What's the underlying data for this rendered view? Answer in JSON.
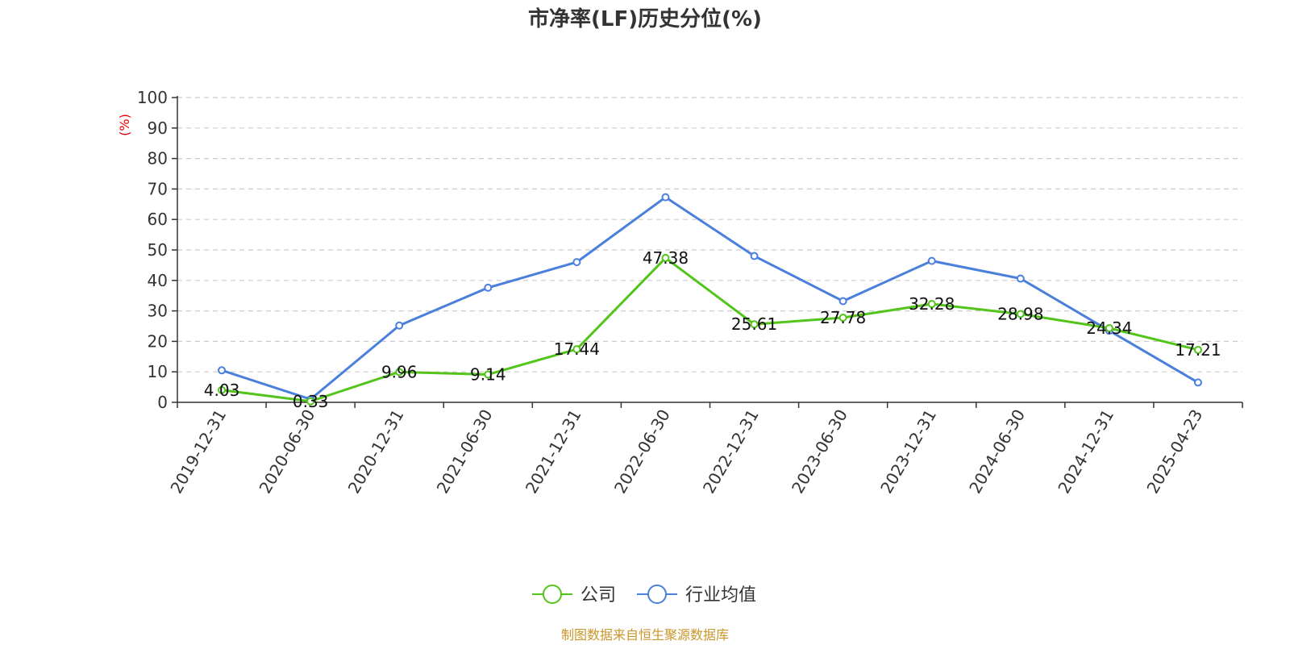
{
  "chart_data": {
    "type": "line",
    "title": "市净率(LF)历史分位(%)",
    "ylabel": "(%)",
    "ylim": [
      0,
      100
    ],
    "yticks": [
      0,
      10,
      20,
      30,
      40,
      50,
      60,
      70,
      80,
      90,
      100
    ],
    "grid": true,
    "legend_position": "bottom",
    "categories": [
      "2019-12-31",
      "2020-06-30",
      "2020-12-31",
      "2021-06-30",
      "2021-12-31",
      "2022-06-30",
      "2022-12-31",
      "2023-06-30",
      "2023-12-31",
      "2024-06-30",
      "2024-12-31",
      "2025-04-23"
    ],
    "series": [
      {
        "name": "公司",
        "color": "#52c41a",
        "values": [
          4.03,
          0.33,
          9.96,
          9.14,
          17.44,
          47.38,
          25.61,
          27.78,
          32.28,
          28.98,
          24.34,
          17.21
        ],
        "labels": [
          "4.03",
          "0.33",
          "9.96",
          "9.14",
          "17.44",
          "47.38",
          "25.61",
          "27.78",
          "32.28",
          "28.98",
          "24.34",
          "17.21"
        ]
      },
      {
        "name": "行业均值",
        "color": "#4a7fdc",
        "values": [
          10.5,
          1.0,
          25.2,
          37.6,
          46.0,
          67.3,
          48.0,
          33.2,
          46.4,
          40.6,
          23.5,
          6.5
        ]
      }
    ],
    "source": "制图数据来自恒生聚源数据库"
  }
}
